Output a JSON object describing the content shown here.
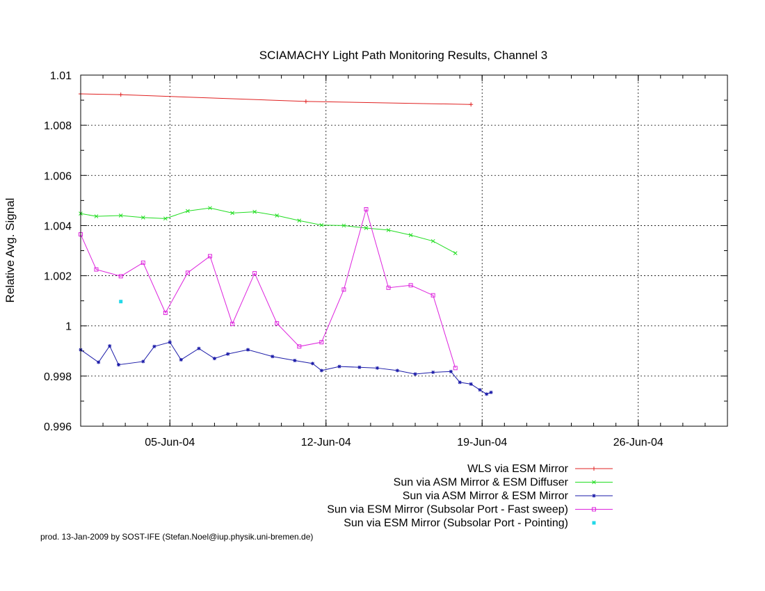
{
  "chart_data": {
    "type": "line",
    "title": "SCIAMACHY Light Path Monitoring Results, Channel 3",
    "xlabel": "",
    "ylabel": "Relative Avg. Signal",
    "xlim": [
      "2004-06-01",
      "2004-06-30"
    ],
    "ylim": [
      0.996,
      1.01
    ],
    "xticks": [
      "05-Jun-04",
      "12-Jun-04",
      "19-Jun-04",
      "26-Jun-04"
    ],
    "xtick_dates": [
      "2004-06-05",
      "2004-06-12",
      "2004-06-19",
      "2004-06-26"
    ],
    "yticks": [
      "0.996",
      "0.998",
      "1",
      "1.002",
      "1.004",
      "1.006",
      "1.008",
      "1.01"
    ],
    "ytick_values": [
      0.996,
      0.998,
      1.0,
      1.002,
      1.004,
      1.006,
      1.008,
      1.01
    ],
    "grid": true,
    "legend_position": "bottom",
    "series": [
      {
        "name": "WLS via ESM Mirror",
        "color": "#e02020",
        "marker": "plus",
        "points": [
          [
            "2004-06-01",
            1.00925
          ],
          [
            "2004-06-02.8",
            1.00922
          ],
          [
            "2004-06-11.1",
            1.00895
          ],
          [
            "2004-06-18.5",
            1.00883
          ]
        ]
      },
      {
        "name": "Sun via ASM Mirror & ESM Diffuser",
        "color": "#20dd20",
        "marker": "cross",
        "points": [
          [
            "2004-06-01",
            1.00448
          ],
          [
            "2004-06-01.7",
            1.00437
          ],
          [
            "2004-06-02.8",
            1.0044
          ],
          [
            "2004-06-03.8",
            1.00432
          ],
          [
            "2004-06-04.8",
            1.00428
          ],
          [
            "2004-06-05.8",
            1.00458
          ],
          [
            "2004-06-06.8",
            1.0047
          ],
          [
            "2004-06-07.8",
            1.0045
          ],
          [
            "2004-06-08.8",
            1.00455
          ],
          [
            "2004-06-09.8",
            1.0044
          ],
          [
            "2004-06-10.8",
            1.0042
          ],
          [
            "2004-06-11.8",
            1.00402
          ],
          [
            "2004-06-12.8",
            1.004
          ],
          [
            "2004-06-13.8",
            1.0039
          ],
          [
            "2004-06-14.8",
            1.00382
          ],
          [
            "2004-06-15.8",
            1.00362
          ],
          [
            "2004-06-16.8",
            1.00338
          ],
          [
            "2004-06-17.8",
            1.0029
          ]
        ]
      },
      {
        "name": "Sun via ASM Mirror & ESM Mirror",
        "color": "#1a1aa8",
        "marker": "star",
        "points": [
          [
            "2004-06-01",
            0.99905
          ],
          [
            "2004-06-01.8",
            0.99855
          ],
          [
            "2004-06-02.3",
            0.9992
          ],
          [
            "2004-06-02.7",
            0.99845
          ],
          [
            "2004-06-03.8",
            0.99858
          ],
          [
            "2004-06-04.3",
            0.99918
          ],
          [
            "2004-06-05.0",
            0.99935
          ],
          [
            "2004-06-05.5",
            0.99865
          ],
          [
            "2004-06-06.3",
            0.9991
          ],
          [
            "2004-06-07.0",
            0.9987
          ],
          [
            "2004-06-07.6",
            0.99888
          ],
          [
            "2004-06-08.5",
            0.99905
          ],
          [
            "2004-06-09.6",
            0.99878
          ],
          [
            "2004-06-10.6",
            0.99862
          ],
          [
            "2004-06-11.4",
            0.9985
          ],
          [
            "2004-06-11.8",
            0.99822
          ],
          [
            "2004-06-12.6",
            0.99838
          ],
          [
            "2004-06-13.5",
            0.99835
          ],
          [
            "2004-06-14.3",
            0.99832
          ],
          [
            "2004-06-15.2",
            0.99822
          ],
          [
            "2004-06-16.0",
            0.99808
          ],
          [
            "2004-06-16.8",
            0.99815
          ],
          [
            "2004-06-17.6",
            0.99818
          ],
          [
            "2004-06-18.0",
            0.99775
          ],
          [
            "2004-06-18.5",
            0.99768
          ],
          [
            "2004-06-18.9",
            0.99745
          ],
          [
            "2004-06-19.2",
            0.99728
          ],
          [
            "2004-06-19.4",
            0.99735
          ]
        ]
      },
      {
        "name": "Sun via ESM Mirror (Subsolar Port - Fast sweep)",
        "color": "#dd22dd",
        "marker": "square",
        "points": [
          [
            "2004-06-01",
            1.00365
          ],
          [
            "2004-06-01.7",
            1.00225
          ],
          [
            "2004-06-02.8",
            1.00198
          ],
          [
            "2004-06-03.8",
            1.00252
          ],
          [
            "2004-06-04.8",
            1.00052
          ],
          [
            "2004-06-05.8",
            1.00212
          ],
          [
            "2004-06-06.8",
            1.00278
          ],
          [
            "2004-06-07.8",
            1.00008
          ],
          [
            "2004-06-08.8",
            1.0021
          ],
          [
            "2004-06-09.8",
            1.0001
          ],
          [
            "2004-06-10.8",
            0.99918
          ],
          [
            "2004-06-11.8",
            0.99935
          ],
          [
            "2004-06-12.8",
            1.00145
          ],
          [
            "2004-06-13.8",
            1.00465
          ],
          [
            "2004-06-14.8",
            1.00152
          ],
          [
            "2004-06-15.8",
            1.00162
          ],
          [
            "2004-06-16.8",
            1.00122
          ],
          [
            "2004-06-17.8",
            0.99832
          ]
        ]
      },
      {
        "name": "Sun via ESM Mirror (Subsolar Port - Pointing)",
        "color": "#22d8e8",
        "marker": "dot",
        "points": [
          [
            "2004-06-02.8",
            1.00097
          ]
        ]
      }
    ]
  },
  "footer": "prod. 13-Jan-2009 by SOST-IFE (Stefan.Noel@iup.physik.uni-bremen.de)"
}
